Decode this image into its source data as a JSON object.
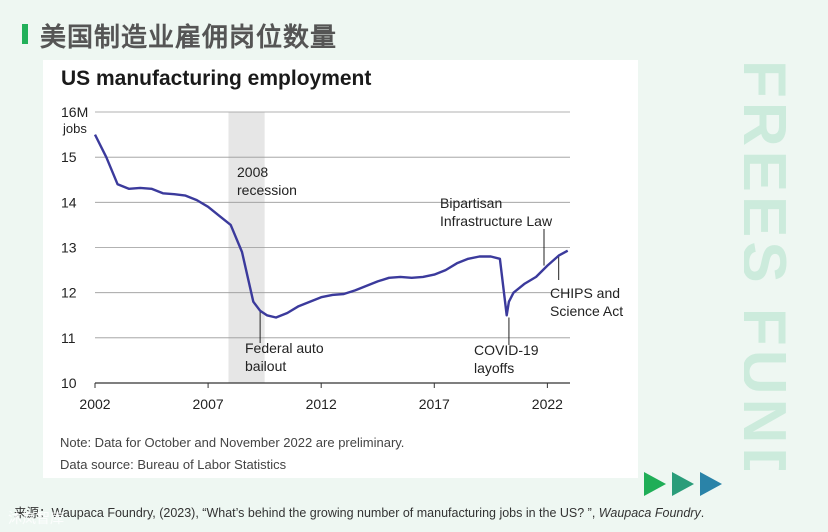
{
  "page": {
    "title": "美国制造业雇佣岗位数量",
    "watermark": "FREES FUND",
    "source_prefix": "来源：",
    "source_text": "Waupaca Foundry, (2023), “What’s behind the growing number of manufacturing jobs in the US? ”, ",
    "source_italic": "Waupaca Foundry",
    "source_end": ".",
    "logo": "沐岚智库",
    "colors": {
      "accent": "#22b05a",
      "line": "#3b3a9c",
      "arrow1": "#1fae57",
      "arrow2": "#2a9d7a",
      "arrow3": "#2a83a8"
    }
  },
  "chart_data": {
    "type": "line",
    "title": "US manufacturing employment",
    "y_unit_label": [
      "16M",
      "jobs"
    ],
    "ylim": [
      10,
      16
    ],
    "xlim": [
      2002,
      2023
    ],
    "y_ticks": [
      10,
      11,
      12,
      13,
      14,
      15,
      16
    ],
    "y_tick_labels": [
      "10",
      "11",
      "12",
      "13",
      "14",
      "15",
      "16M"
    ],
    "x_ticks": [
      2002,
      2007,
      2012,
      2017,
      2022
    ],
    "x_tick_labels": [
      "2002",
      "2007",
      "2012",
      "2017",
      "2022"
    ],
    "grid": "horizontal",
    "shaded_regions": [
      {
        "x_start": 2007.9,
        "x_end": 2009.5,
        "label": [
          "2008",
          "recession"
        ]
      }
    ],
    "annotations": [
      {
        "label": [
          "Federal auto",
          "bailout"
        ],
        "x": 2009.3,
        "y": 11.7
      },
      {
        "label": [
          "COVID-19",
          "layoffs"
        ],
        "x": 2020.3,
        "y": 11.4
      },
      {
        "label": [
          "Bipartisan",
          "Infrastructure Law"
        ],
        "x": 2021.9,
        "y": 12.6
      },
      {
        "label": [
          "CHIPS and",
          "Science Act"
        ],
        "x": 2022.6,
        "y": 12.8
      }
    ],
    "series": [
      {
        "x": [
          2002,
          2002.5,
          2003,
          2003.5,
          2004,
          2004.5,
          2005,
          2005.5,
          2006,
          2006.5,
          2007,
          2007.5,
          2008,
          2008.5,
          2009,
          2009.3,
          2009.6,
          2010,
          2010.5,
          2011,
          2011.5,
          2012,
          2012.5,
          2013,
          2013.5,
          2014,
          2014.5,
          2015,
          2015.5,
          2016,
          2016.5,
          2017,
          2017.5,
          2018,
          2018.5,
          2019,
          2019.5,
          2019.9,
          2020.2,
          2020.3,
          2020.5,
          2021,
          2021.5,
          2022,
          2022.5,
          2022.9
        ],
        "values": [
          15.5,
          15.0,
          14.4,
          14.3,
          14.32,
          14.3,
          14.2,
          14.18,
          14.15,
          14.05,
          13.9,
          13.7,
          13.5,
          12.9,
          11.8,
          11.6,
          11.5,
          11.45,
          11.55,
          11.7,
          11.8,
          11.9,
          11.95,
          11.97,
          12.05,
          12.15,
          12.25,
          12.33,
          12.35,
          12.33,
          12.35,
          12.4,
          12.5,
          12.65,
          12.75,
          12.8,
          12.8,
          12.75,
          11.5,
          11.8,
          12.0,
          12.2,
          12.35,
          12.6,
          12.82,
          12.93
        ]
      }
    ]
  },
  "notes": [
    "Note: Data for October and November 2022 are preliminary.",
    "Data source: Bureau of Labor Statistics"
  ]
}
